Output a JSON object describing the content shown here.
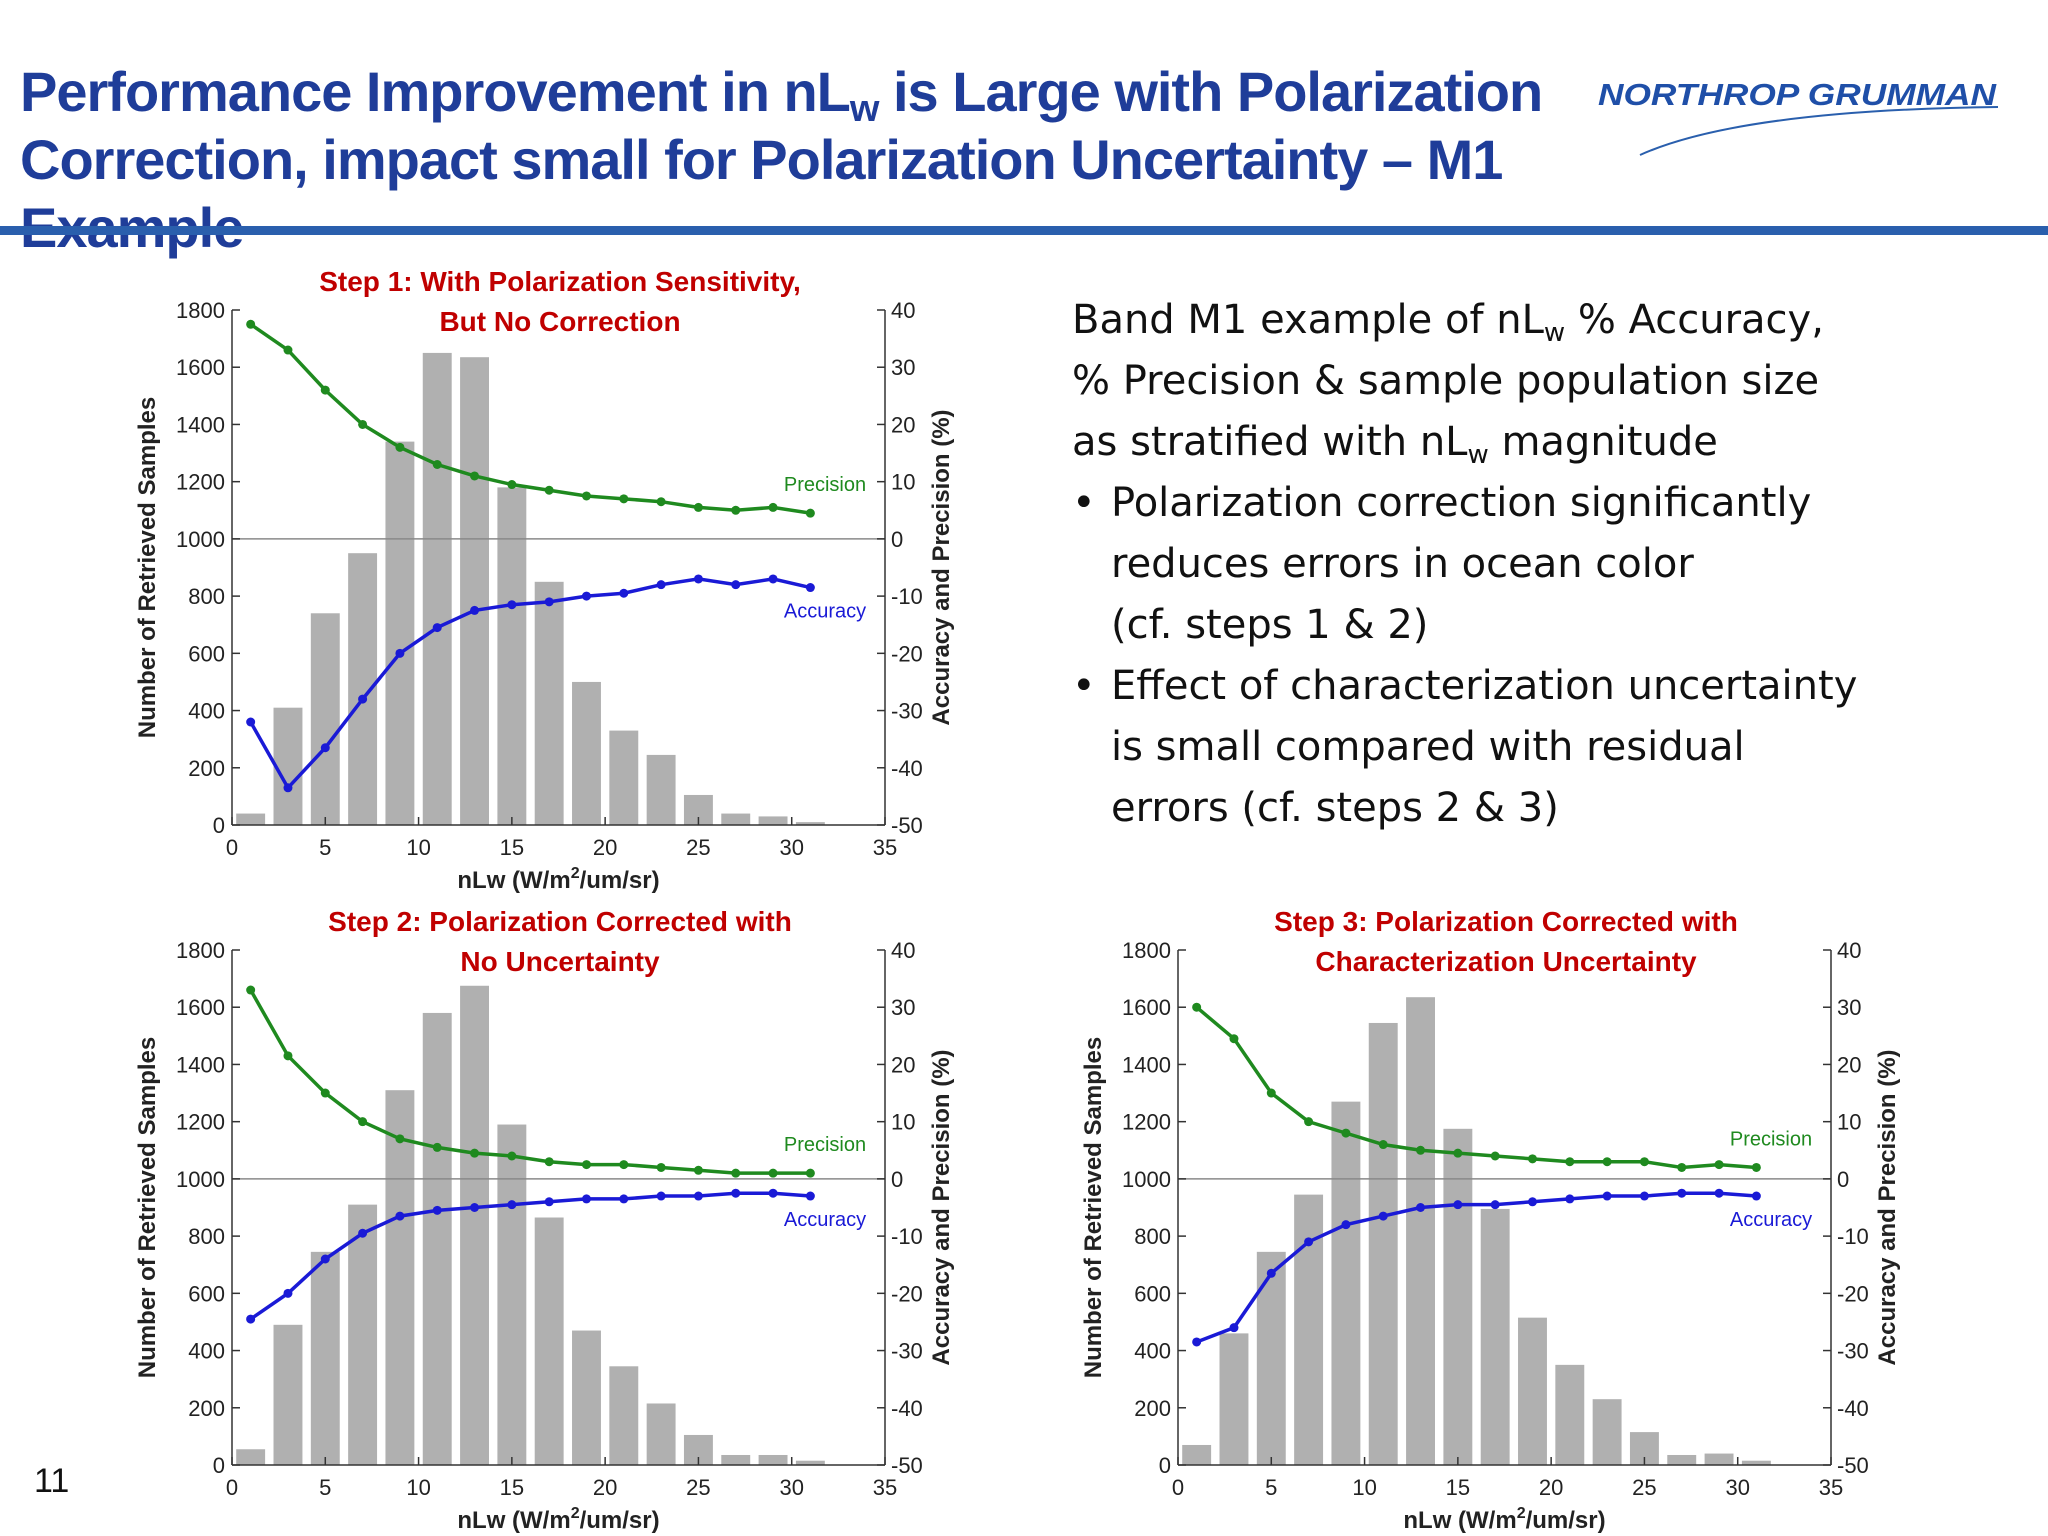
{
  "slide": {
    "title_line1_pre": "Performance Improvement in nL",
    "title_sub": "w",
    "title_line1_post": " is Large with Polarization",
    "title_line2": "Correction, impact small for Polarization Uncertainty – M1 Example",
    "logo_text": "NORTHROP GRUMMAN",
    "page_number": "11",
    "colors": {
      "title": "#1f3d99",
      "rule": "#2a5fad",
      "chart_title": "#c00000",
      "precision": "#1f8a1f",
      "accuracy": "#1a1ad6",
      "bars": "#b0b0b0"
    }
  },
  "text_panel": {
    "intro_pre": "Band M1 example of nL",
    "intro_sub": "w",
    "intro_mid": " % Accuracy,",
    "intro_line2": "% Precision & sample population size",
    "intro_line3_pre": "as stratified with nL",
    "intro_line3_sub": "w",
    "intro_line3_post": " magnitude",
    "bullet_char": "•",
    "bullet1_l1": "Polarization correction significantly",
    "bullet1_l2": "reduces errors in ocean color",
    "bullet1_l3": "(cf. steps 1 & 2)",
    "bullet2_l1": "Effect of characterization uncertainty",
    "bullet2_l2": "is small compared with residual",
    "bullet2_l3": "errors (cf. steps 2 & 3)"
  },
  "chart_data": [
    {
      "type": "bar",
      "title_line1": "Step 1: With Polarization Sensitivity,",
      "title_line2": "But No Correction",
      "xlabel_pre": "nLw (W/m",
      "xlabel_sup": "2",
      "xlabel_post": "/um/sr)",
      "ylabel": "Number of Retrieved Samples",
      "y2label": "Accuracy and Precision (%)",
      "xlim": [
        0,
        35
      ],
      "ylim": [
        0,
        1800
      ],
      "y2lim": [
        -50,
        40
      ],
      "xticks": [
        "0",
        "5",
        "10",
        "15",
        "20",
        "25",
        "30",
        "35"
      ],
      "yticks": [
        "0",
        "200",
        "400",
        "600",
        "800",
        "1000",
        "1200",
        "1400",
        "1600",
        "1800"
      ],
      "y2ticks": [
        "-50",
        "-40",
        "-30",
        "-20",
        "-10",
        "0",
        "10",
        "20",
        "30",
        "40"
      ],
      "x": [
        1,
        3,
        5,
        7,
        9,
        11,
        13,
        15,
        17,
        19,
        21,
        23,
        25,
        27,
        29,
        31
      ],
      "bars": [
        40,
        410,
        740,
        950,
        1340,
        1650,
        1635,
        1180,
        850,
        500,
        330,
        245,
        105,
        40,
        30,
        10
      ],
      "series": [
        {
          "name": "Precision",
          "axis": "right",
          "values": [
            37.5,
            33,
            26,
            20,
            16,
            13,
            11,
            9.5,
            8.5,
            7.5,
            7,
            6.5,
            5.5,
            5,
            5.5,
            4.5
          ]
        },
        {
          "name": "Accuracy",
          "axis": "right",
          "values": [
            -32,
            -43.5,
            -36.5,
            -28,
            -20,
            -15.5,
            -12.5,
            -11.5,
            -11,
            -10,
            -9.5,
            -8,
            -7,
            -8,
            -7,
            -8.5
          ]
        }
      ],
      "label_precision": "Precision",
      "label_accuracy": "Accuracy"
    },
    {
      "type": "bar",
      "title_line1": "Step 2: Polarization Corrected with",
      "title_line2": "No Uncertainty",
      "xlabel_pre": "nLw (W/m",
      "xlabel_sup": "2",
      "xlabel_post": "/um/sr)",
      "ylabel": "Number of Retrieved Samples",
      "y2label": "Accuracy and Precision (%)",
      "xlim": [
        0,
        35
      ],
      "ylim": [
        0,
        1800
      ],
      "y2lim": [
        -50,
        40
      ],
      "xticks": [
        "0",
        "5",
        "10",
        "15",
        "20",
        "25",
        "30",
        "35"
      ],
      "yticks": [
        "0",
        "200",
        "400",
        "600",
        "800",
        "1000",
        "1200",
        "1400",
        "1600",
        "1800"
      ],
      "y2ticks": [
        "-50",
        "-40",
        "-30",
        "-20",
        "-10",
        "0",
        "10",
        "20",
        "30",
        "40"
      ],
      "x": [
        1,
        3,
        5,
        7,
        9,
        11,
        13,
        15,
        17,
        19,
        21,
        23,
        25,
        27,
        29,
        31
      ],
      "bars": [
        55,
        490,
        745,
        910,
        1310,
        1580,
        1675,
        1190,
        865,
        470,
        345,
        215,
        105,
        35,
        35,
        15
      ],
      "series": [
        {
          "name": "Precision",
          "axis": "right",
          "values": [
            33,
            21.5,
            15,
            10,
            7,
            5.5,
            4.5,
            4,
            3,
            2.5,
            2.5,
            2,
            1.5,
            1,
            1,
            1
          ]
        },
        {
          "name": "Accuracy",
          "axis": "right",
          "values": [
            -24.5,
            -20,
            -14,
            -9.5,
            -6.5,
            -5.5,
            -5,
            -4.5,
            -4,
            -3.5,
            -3.5,
            -3,
            -3,
            -2.5,
            -2.5,
            -3
          ]
        }
      ],
      "label_precision": "Precision",
      "label_accuracy": "Accuracy"
    },
    {
      "type": "bar",
      "title_line1": "Step 3: Polarization Corrected with",
      "title_line2": "Characterization Uncertainty",
      "xlabel_pre": "nLw (W/m",
      "xlabel_sup": "2",
      "xlabel_post": "/um/sr)",
      "ylabel": "Number of Retrieved Samples",
      "y2label": "Accuracy and Precision (%)",
      "xlim": [
        0,
        35
      ],
      "ylim": [
        0,
        1800
      ],
      "y2lim": [
        -50,
        40
      ],
      "xticks": [
        "0",
        "5",
        "10",
        "15",
        "20",
        "25",
        "30",
        "35"
      ],
      "yticks": [
        "0",
        "200",
        "400",
        "600",
        "800",
        "1000",
        "1200",
        "1400",
        "1600",
        "1800"
      ],
      "y2ticks": [
        "-50",
        "-40",
        "-30",
        "-20",
        "-10",
        "0",
        "10",
        "20",
        "30",
        "40"
      ],
      "x": [
        1,
        3,
        5,
        7,
        9,
        11,
        13,
        15,
        17,
        19,
        21,
        23,
        25,
        27,
        29,
        31
      ],
      "bars": [
        70,
        460,
        745,
        945,
        1270,
        1545,
        1635,
        1175,
        895,
        515,
        350,
        230,
        115,
        35,
        40,
        15
      ],
      "series": [
        {
          "name": "Precision",
          "axis": "right",
          "values": [
            30,
            24.5,
            15,
            10,
            8,
            6,
            5,
            4.5,
            4,
            3.5,
            3,
            3,
            3,
            2,
            2.5,
            2
          ]
        },
        {
          "name": "Accuracy",
          "axis": "right",
          "values": [
            -28.5,
            -26,
            -16.5,
            -11,
            -8,
            -6.5,
            -5,
            -4.5,
            -4.5,
            -4,
            -3.5,
            -3,
            -3,
            -2.5,
            -2.5,
            -3
          ]
        }
      ],
      "label_precision": "Precision",
      "label_accuracy": "Accuracy"
    }
  ]
}
